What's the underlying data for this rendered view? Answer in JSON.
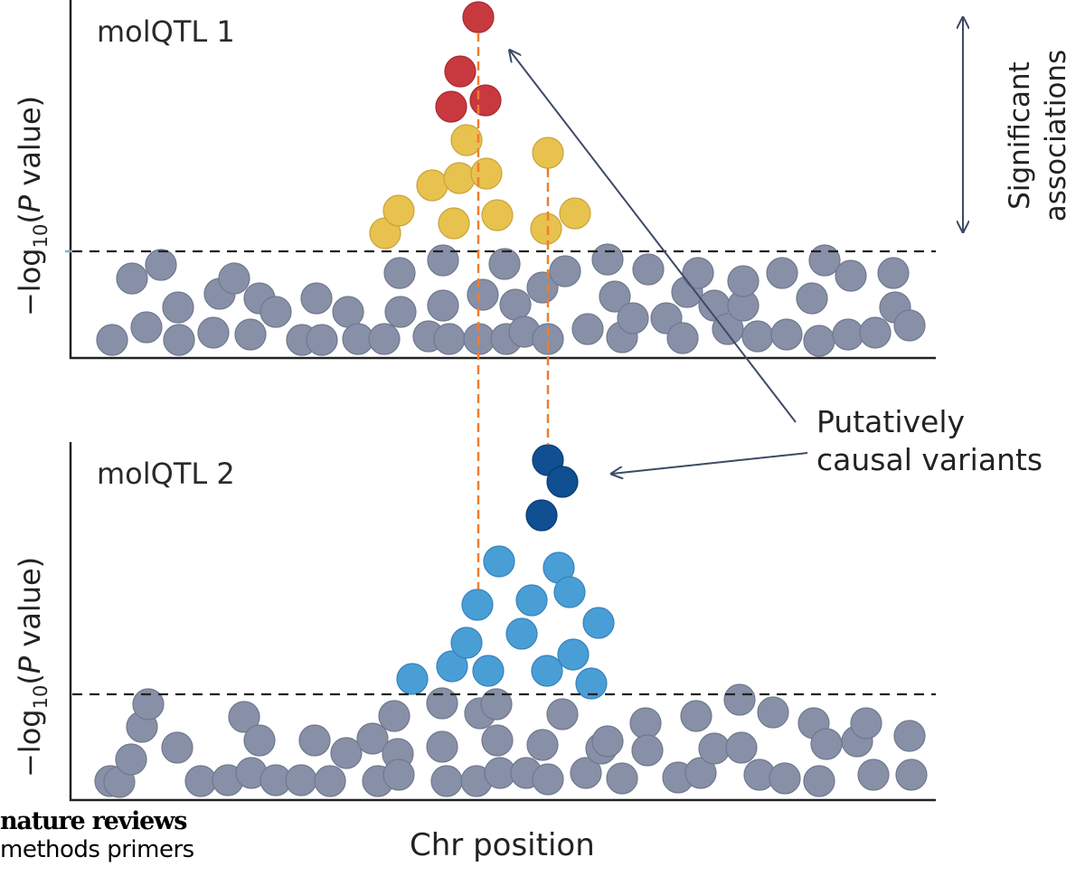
{
  "panels": [
    {
      "title": "molQTL 1",
      "ylabel": {
        "prefix": "−log",
        "sub": "10",
        "open": "(",
        "italic": "P",
        "rest": " value)"
      },
      "colors": {
        "background": "#8790a6",
        "significant": "#e7c24e",
        "lead": "#c8393f"
      }
    },
    {
      "title": "molQTL 2",
      "ylabel": {
        "prefix": "−log",
        "sub": "10",
        "open": "(",
        "italic": "P",
        "rest": " value)"
      },
      "colors": {
        "background": "#8790a6",
        "significant": "#4a9ed6",
        "lead": "#0f4f92"
      }
    }
  ],
  "xlabel": "Chr position",
  "annotation": {
    "line1": "Putatively",
    "line2": "causal variants"
  },
  "significant_label": {
    "line1": "Significant",
    "line2": "associations"
  },
  "colors": {
    "threshold_line": "#222222",
    "causal_line": "#ef7d2e",
    "arrow": "#3d4a66"
  },
  "logo": {
    "line1": "nature reviews",
    "line2": "methods primers"
  }
}
